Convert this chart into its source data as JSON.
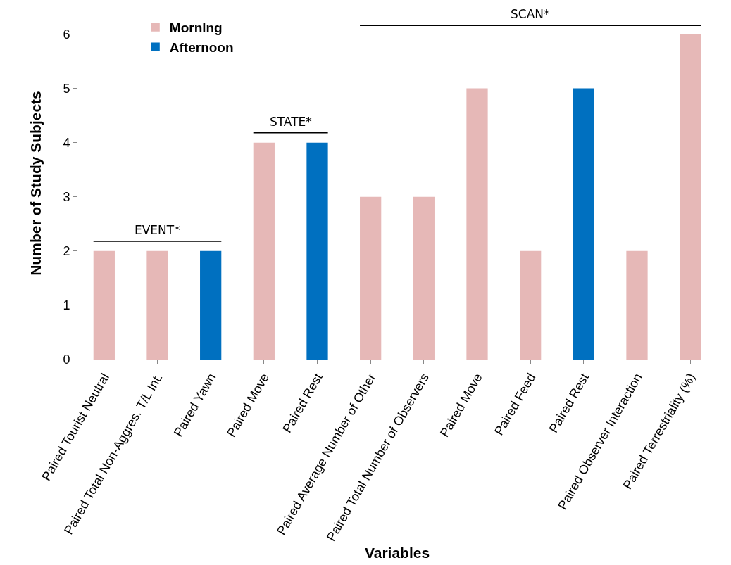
{
  "chart_data": {
    "type": "bar",
    "xlabel": "Variables",
    "ylabel": "Number of Study Subjects",
    "categories": [
      "Paired Tourist Neutral",
      "Paired Total Non-Aggres. T/L Int.",
      "Paired Yawn",
      "Paired Move",
      "Paired Rest",
      "Paired Average Number of Other",
      "Paired Total Number of Observers",
      "Paired Move",
      "Paired Feed",
      "Paired Rest",
      "Paired Observer Interaction",
      "Paired Terrestriality (%)"
    ],
    "series": [
      {
        "name": "Morning",
        "color": "#e6b8b7",
        "values": [
          2,
          2,
          null,
          4,
          null,
          3,
          3,
          5,
          2,
          null,
          2,
          6
        ]
      },
      {
        "name": "Afternoon",
        "color": "#0070c0",
        "values": [
          null,
          null,
          2,
          null,
          4,
          null,
          null,
          null,
          null,
          5,
          null,
          null
        ]
      }
    ],
    "ylim": [
      0,
      6.5
    ],
    "yticks": [
      0,
      1,
      2,
      3,
      4,
      5,
      6
    ],
    "grid": false,
    "legend": "top left",
    "annotations": [
      "EVENT*",
      "STATE*",
      "SCAN*"
    ]
  }
}
